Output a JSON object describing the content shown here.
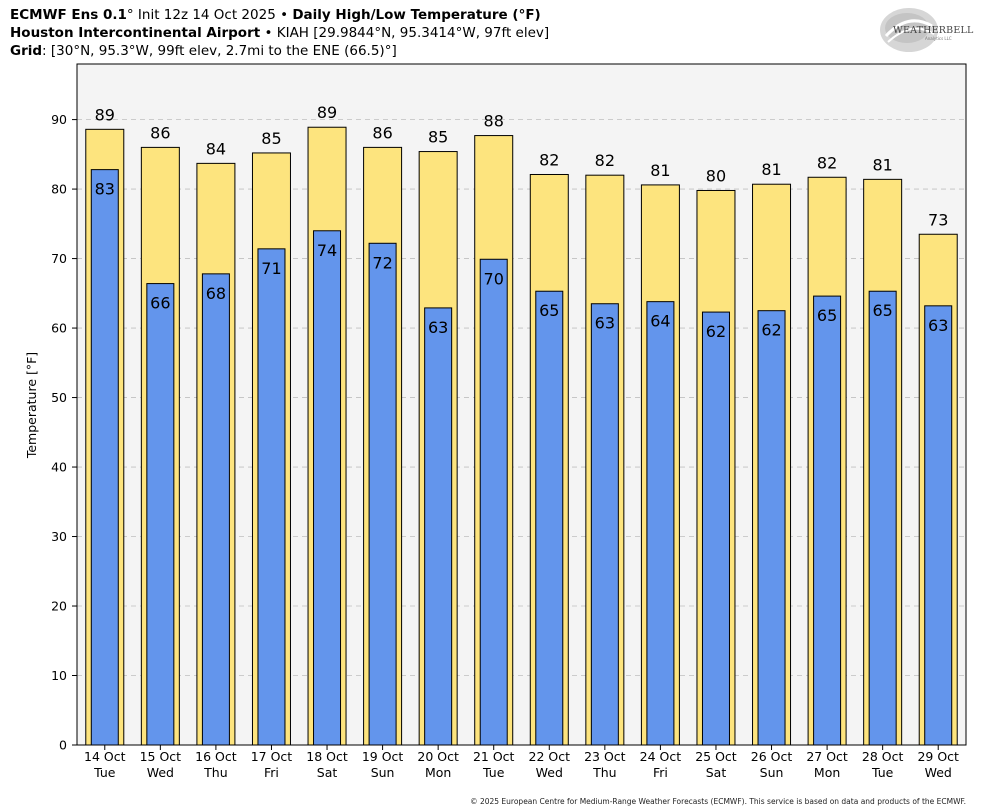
{
  "header": {
    "line1": {
      "model": "ECMWF Ens 0.1",
      "deg": "°",
      "init": " Init 12z 14 Oct 2025 • ",
      "product": "Daily High/Low Temperature (°F)"
    },
    "line2": {
      "station": "Houston Intercontinental Airport",
      "details": " • KIAH [29.9844°N, 95.3414°W, 97ft elev]"
    },
    "line3": {
      "label": "Grid",
      "details": ": [30°N, 95.3°W, 99ft elev, 2.7mi to the ENE (66.5)°]"
    }
  },
  "logo": {
    "text": "WEATHERBELL",
    "subtext": "Analytics LLC",
    "icon": "swirl-logo"
  },
  "footer": "© 2025 European Centre for Medium-Range Weather Forecasts (ECMWF). This service is based on data and products of the ECMWF.",
  "colors": {
    "high": "#fde47e",
    "low": "#6395ec",
    "plot_bg": "#f4f4f4",
    "grid": "#bfbfbf"
  },
  "chart_data": {
    "type": "bar",
    "title": "Daily High/Low Temperature (°F)",
    "xlabel": "",
    "ylabel": "Temperature [°F]",
    "ylim": [
      0,
      98
    ],
    "yticks": [
      0,
      10,
      20,
      30,
      40,
      50,
      60,
      70,
      80,
      90
    ],
    "grid": true,
    "categories": [
      [
        "14 Oct",
        "Tue"
      ],
      [
        "15 Oct",
        "Wed"
      ],
      [
        "16 Oct",
        "Thu"
      ],
      [
        "17 Oct",
        "Fri"
      ],
      [
        "18 Oct",
        "Sat"
      ],
      [
        "19 Oct",
        "Sun"
      ],
      [
        "20 Oct",
        "Mon"
      ],
      [
        "21 Oct",
        "Tue"
      ],
      [
        "22 Oct",
        "Wed"
      ],
      [
        "23 Oct",
        "Thu"
      ],
      [
        "24 Oct",
        "Fri"
      ],
      [
        "25 Oct",
        "Sat"
      ],
      [
        "26 Oct",
        "Sun"
      ],
      [
        "27 Oct",
        "Mon"
      ],
      [
        "28 Oct",
        "Tue"
      ],
      [
        "29 Oct",
        "Wed"
      ]
    ],
    "series": [
      {
        "values": [
          88.6,
          86.0,
          83.7,
          85.2,
          88.9,
          86.0,
          85.4,
          87.7,
          82.1,
          82.0,
          80.6,
          79.8,
          80.7,
          81.7,
          81.4,
          73.5
        ],
        "labels": [
          "89",
          "86",
          "84",
          "85",
          "89",
          "86",
          "85",
          "88",
          "82",
          "82",
          "81",
          "80",
          "81",
          "82",
          "81",
          "73"
        ]
      },
      {
        "values": [
          82.8,
          66.4,
          67.8,
          71.4,
          74.0,
          72.2,
          62.9,
          69.9,
          65.3,
          63.5,
          63.8,
          62.3,
          62.5,
          64.6,
          65.3,
          63.2
        ],
        "labels": [
          "83",
          "66",
          "68",
          "71",
          "74",
          "72",
          "63",
          "70",
          "65",
          "63",
          "64",
          "62",
          "62",
          "65",
          "65",
          "63"
        ]
      }
    ]
  }
}
